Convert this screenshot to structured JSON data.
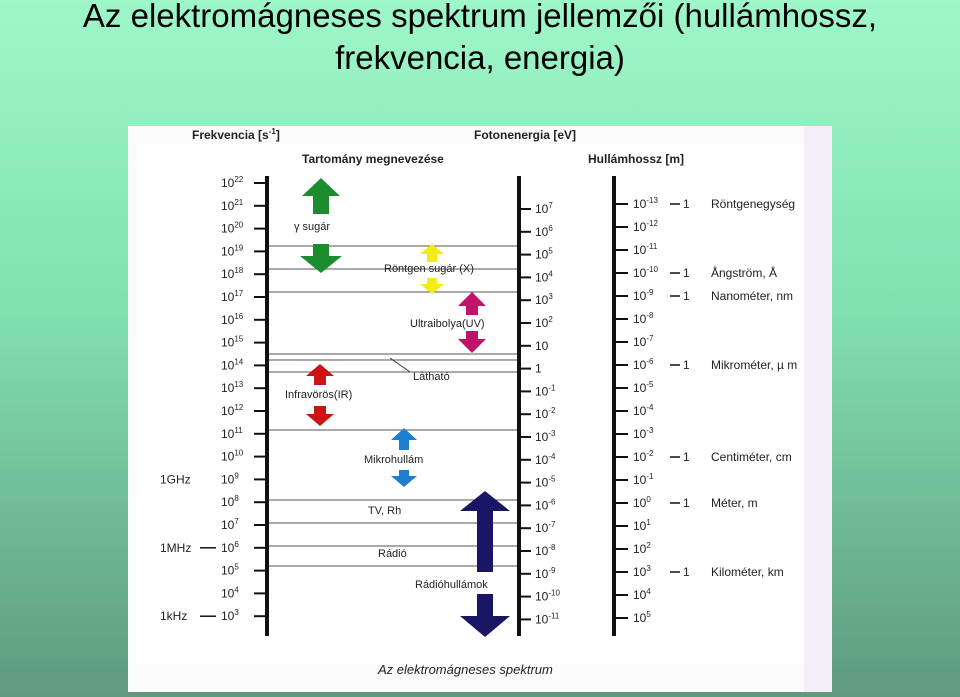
{
  "title": {
    "line1": "Az elektromágneses spektrum jellemzői (hullámhossz,",
    "line2": "frekvencia, energia)"
  },
  "figure": {
    "header_frequency": "Frekvencia [s",
    "header_frequency_exp": "-1",
    "header_frequency_close": "]",
    "header_range_name": "Tartomány megnevezése",
    "header_photon_energy": "Fotonenergia [eV]",
    "header_wavelength": "Hullámhossz [m]",
    "caption": "Az elektromágneses spektrum",
    "frequency_exponents": [
      "22",
      "21",
      "20",
      "19",
      "18",
      "17",
      "16",
      "15",
      "14",
      "13",
      "12",
      "11",
      "10",
      "9",
      "8",
      "7",
      "6",
      "5",
      "4",
      "3"
    ],
    "frequency_base": "10",
    "frequency_side_labels": [
      {
        "text": "1GHz",
        "exp_index": 13,
        "dash": false
      },
      {
        "text": "1MHz",
        "exp_index": 16,
        "dash": true
      },
      {
        "text": "1kHz",
        "exp_index": 19,
        "dash": true
      }
    ],
    "energy_labels": [
      {
        "base": "10",
        "exp": "7"
      },
      {
        "base": "10",
        "exp": "6"
      },
      {
        "base": "10",
        "exp": "5"
      },
      {
        "base": "10",
        "exp": "4"
      },
      {
        "base": "10",
        "exp": "3"
      },
      {
        "base": "10",
        "exp": "2"
      },
      {
        "base": "10",
        "exp": ""
      },
      {
        "base": "1",
        "exp": ""
      },
      {
        "base": "10",
        "exp": "-1"
      },
      {
        "base": "10",
        "exp": "-2"
      },
      {
        "base": "10",
        "exp": "-3"
      },
      {
        "base": "10",
        "exp": "-4"
      },
      {
        "base": "10",
        "exp": "-5"
      },
      {
        "base": "10",
        "exp": "-6"
      },
      {
        "base": "10",
        "exp": "-7"
      },
      {
        "base": "10",
        "exp": "-8"
      },
      {
        "base": "10",
        "exp": "-9"
      },
      {
        "base": "10",
        "exp": "-10"
      },
      {
        "base": "10",
        "exp": "-11"
      }
    ],
    "wavelength_exponents": [
      "-13",
      "-12",
      "-11",
      "-10",
      "-9",
      "-8",
      "-7",
      "-6",
      "-5",
      "-4",
      "-3",
      "-2",
      "-1",
      "0",
      "1",
      "2",
      "3",
      "4",
      "5"
    ],
    "wavelength_base": "10",
    "wavelength_units": [
      {
        "exp_index": 0,
        "one": "1",
        "name": "Röntgenegység"
      },
      {
        "exp_index": 3,
        "one": "1",
        "name": "Ångström, Å"
      },
      {
        "exp_index": 4,
        "one": "1",
        "name": "Nanométer, nm"
      },
      {
        "exp_index": 7,
        "one": "1",
        "name": "Mikrométer, µ m"
      },
      {
        "exp_index": 11,
        "one": "1",
        "name": "Centiméter, cm"
      },
      {
        "exp_index": 13,
        "one": "1",
        "name": "Méter, m"
      },
      {
        "exp_index": 16,
        "one": "1",
        "name": "Kilométer, km"
      }
    ],
    "regions": [
      {
        "name": "γ sugár",
        "color": "#1c8c2e"
      },
      {
        "name": "Röntgen sugár (X)",
        "color": "#f3ea1c"
      },
      {
        "name": "Ultraibolya(UV)",
        "color": "#c0146a"
      },
      {
        "name": "Látható",
        "color": "#222222"
      },
      {
        "name": "Infravörös(IR)",
        "color": "#cc1414"
      },
      {
        "name": "Mikrohullám",
        "color": "#1e7fd0"
      },
      {
        "name": "TV, Rh",
        "color": "#222222"
      },
      {
        "name": "Rádió",
        "color": "#222222"
      },
      {
        "name": "Rádióhullámok",
        "color": "#1a1666"
      }
    ]
  }
}
